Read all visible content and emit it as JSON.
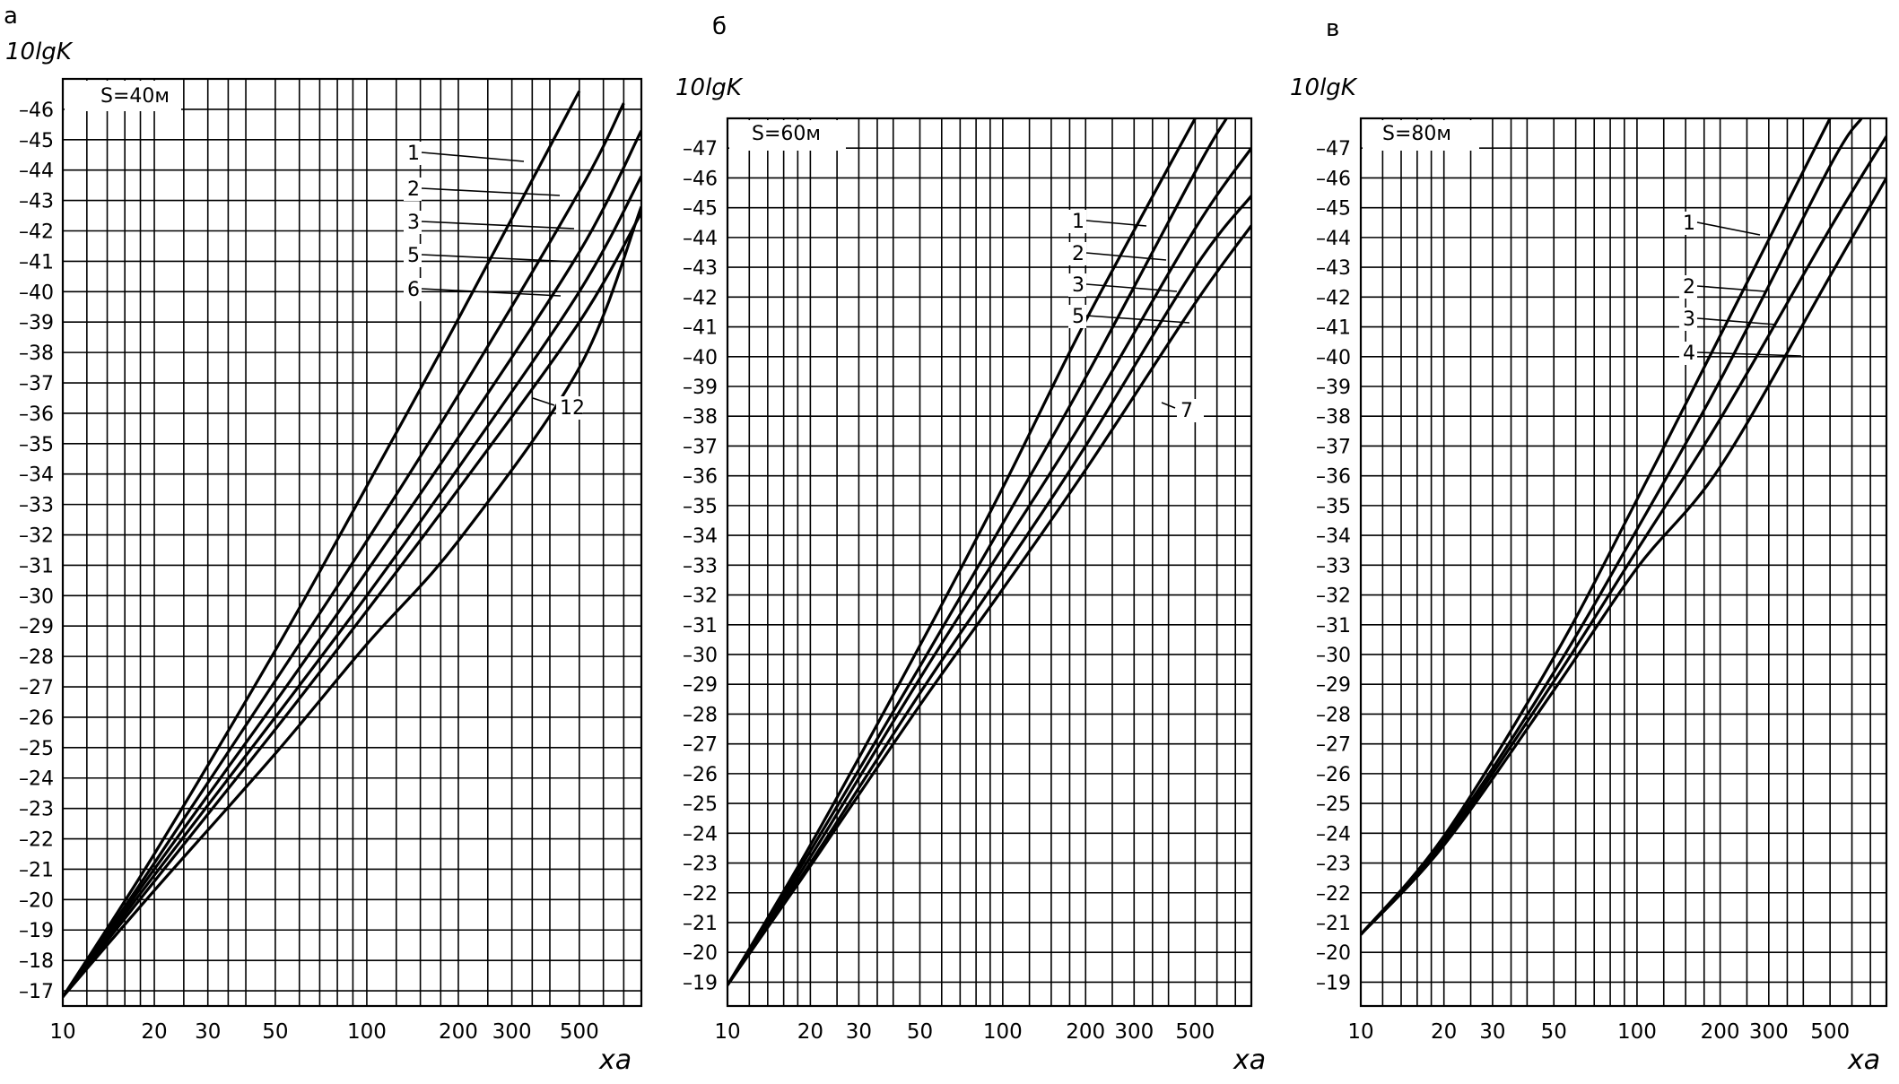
{
  "chart_data": [
    {
      "type": "line",
      "panel": "а",
      "title": "",
      "ylabel": "10lgK",
      "xlabel": "xa",
      "box_label": "S=40м",
      "x_scale": "log",
      "xlim": [
        10,
        800
      ],
      "ylim": [
        -16.5,
        -47
      ],
      "x_ticks": [
        10,
        20,
        30,
        50,
        100,
        200,
        300,
        500
      ],
      "x_tick_labels": [
        "10",
        "20",
        "30",
        "50",
        "100",
        "200",
        "300",
        "500"
      ],
      "y_ticks": [
        -17,
        -18,
        -19,
        -20,
        -21,
        -22,
        -23,
        -24,
        -25,
        -26,
        -27,
        -28,
        -29,
        -30,
        -31,
        -32,
        -33,
        -34,
        -35,
        -36,
        -37,
        -38,
        -39,
        -40,
        -41,
        -42,
        -43,
        -44,
        -45,
        -46
      ],
      "grid": true,
      "series": [
        {
          "name": "1",
          "x": [
            10,
            20,
            50,
            100,
            200,
            500
          ],
          "y": [
            -16.8,
            -21.5,
            -28.2,
            -33.6,
            -39.1,
            -46.6
          ]
        },
        {
          "name": "2",
          "x": [
            10,
            20,
            50,
            100,
            200,
            500,
            700
          ],
          "y": [
            -16.8,
            -21.2,
            -27.2,
            -31.8,
            -36.6,
            -43.3,
            -46.2
          ]
        },
        {
          "name": "3",
          "x": [
            10,
            20,
            50,
            100,
            200,
            500,
            800
          ],
          "y": [
            -16.8,
            -21.0,
            -26.5,
            -30.8,
            -35.2,
            -41.3,
            -45.3
          ]
        },
        {
          "name": "5",
          "x": [
            10,
            20,
            50,
            100,
            200,
            500,
            800
          ],
          "y": [
            -16.8,
            -20.8,
            -26.0,
            -30.0,
            -34.2,
            -40.0,
            -43.8
          ]
        },
        {
          "name": "6",
          "x": [
            10,
            20,
            50,
            100,
            200,
            500,
            800
          ],
          "y": [
            -16.8,
            -20.6,
            -25.6,
            -29.5,
            -33.5,
            -39.0,
            -42.6
          ]
        },
        {
          "name": "12",
          "x": [
            10,
            20,
            50,
            100,
            200,
            500,
            800
          ],
          "y": [
            -16.8,
            -20.3,
            -24.8,
            -28.4,
            -31.8,
            -37.5,
            -42.8
          ]
        }
      ]
    },
    {
      "type": "line",
      "panel": "б",
      "title": "",
      "ylabel": "10lgK",
      "xlabel": "xa",
      "box_label": "S=60м",
      "x_scale": "log",
      "xlim": [
        10,
        800
      ],
      "ylim": [
        -18.2,
        -48
      ],
      "x_ticks": [
        10,
        20,
        30,
        50,
        100,
        200,
        300,
        500
      ],
      "x_tick_labels": [
        "10",
        "20",
        "30",
        "50",
        "100",
        "200",
        "300",
        "500"
      ],
      "y_ticks": [
        -19,
        -20,
        -21,
        -22,
        -23,
        -24,
        -25,
        -26,
        -27,
        -28,
        -29,
        -30,
        -31,
        -32,
        -33,
        -34,
        -35,
        -36,
        -37,
        -38,
        -39,
        -40,
        -41,
        -42,
        -43,
        -44,
        -45,
        -46,
        -47
      ],
      "grid": true,
      "series": [
        {
          "name": "1",
          "x": [
            10,
            20,
            50,
            100,
            200,
            500
          ],
          "y": [
            -18.9,
            -23.6,
            -30.3,
            -35.6,
            -41.2,
            -48.0
          ]
        },
        {
          "name": "2",
          "x": [
            10,
            20,
            50,
            100,
            200,
            500,
            650
          ],
          "y": [
            -18.9,
            -23.4,
            -29.6,
            -34.4,
            -39.3,
            -46.2,
            -48.0
          ]
        },
        {
          "name": "3",
          "x": [
            10,
            20,
            50,
            100,
            200,
            500,
            800
          ],
          "y": [
            -18.9,
            -23.2,
            -29.2,
            -33.6,
            -38.0,
            -44.3,
            -47.0
          ]
        },
        {
          "name": "5",
          "x": [
            10,
            20,
            50,
            100,
            200,
            500,
            800
          ],
          "y": [
            -18.9,
            -23.0,
            -28.7,
            -32.8,
            -37.0,
            -43.0,
            -45.4
          ]
        },
        {
          "name": "7",
          "x": [
            10,
            20,
            50,
            100,
            200,
            500,
            800
          ],
          "y": [
            -18.9,
            -22.9,
            -28.3,
            -32.2,
            -36.2,
            -41.8,
            -44.4
          ]
        }
      ]
    },
    {
      "type": "line",
      "panel": "в",
      "title": "",
      "ylabel": "10lgK",
      "xlabel": "xa",
      "box_label": "S=80м",
      "x_scale": "log",
      "xlim": [
        10,
        800
      ],
      "ylim": [
        -18.2,
        -48
      ],
      "x_ticks": [
        10,
        20,
        30,
        50,
        100,
        200,
        300,
        500
      ],
      "x_tick_labels": [
        "10",
        "20",
        "30",
        "50",
        "100",
        "200",
        "300",
        "500"
      ],
      "y_ticks": [
        -19,
        -20,
        -21,
        -22,
        -23,
        -24,
        -25,
        -26,
        -27,
        -28,
        -29,
        -30,
        -31,
        -32,
        -33,
        -34,
        -35,
        -36,
        -37,
        -38,
        -39,
        -40,
        -41,
        -42,
        -43,
        -44,
        -45,
        -46,
        -47
      ],
      "grid": true,
      "series": [
        {
          "name": "1",
          "x": [
            10,
            20,
            50,
            100,
            200,
            500
          ],
          "y": [
            -20.6,
            -23.9,
            -29.9,
            -35.2,
            -40.7,
            -48.0
          ]
        },
        {
          "name": "2",
          "x": [
            10,
            20,
            50,
            100,
            200,
            500,
            650
          ],
          "y": [
            -20.6,
            -23.8,
            -29.4,
            -34.2,
            -39.2,
            -46.4,
            -48.0
          ]
        },
        {
          "name": "3",
          "x": [
            10,
            20,
            50,
            100,
            200,
            500,
            800
          ],
          "y": [
            -20.6,
            -23.7,
            -29.1,
            -33.5,
            -37.9,
            -44.3,
            -47.4
          ]
        },
        {
          "name": "4",
          "x": [
            10,
            20,
            50,
            100,
            200,
            500,
            800
          ],
          "y": [
            -20.6,
            -23.6,
            -28.8,
            -32.9,
            -36.3,
            -42.7,
            -46.0
          ]
        }
      ]
    }
  ]
}
